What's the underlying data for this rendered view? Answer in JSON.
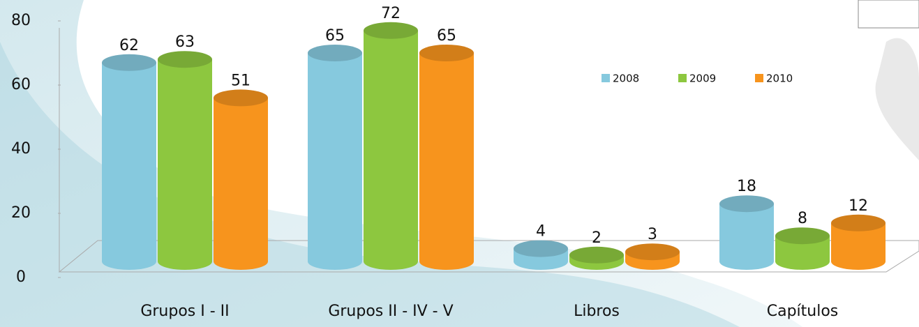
{
  "chart_data": {
    "type": "bar",
    "categories": [
      "Grupos I - II",
      "Grupos II - IV - V",
      "Libros",
      "Capítulos"
    ],
    "series": [
      {
        "name": "2008",
        "color": "#86c9de",
        "values": [
          62,
          65,
          4,
          18
        ]
      },
      {
        "name": "2009",
        "color": "#8dc73f",
        "values": [
          63,
          72,
          2,
          8
        ]
      },
      {
        "name": "2010",
        "color": "#f7941d",
        "values": [
          51,
          65,
          3,
          12
        ]
      }
    ],
    "ylim": [
      0,
      80
    ],
    "yticks": [
      0,
      20,
      40,
      60,
      80
    ],
    "legend": "upper right"
  }
}
